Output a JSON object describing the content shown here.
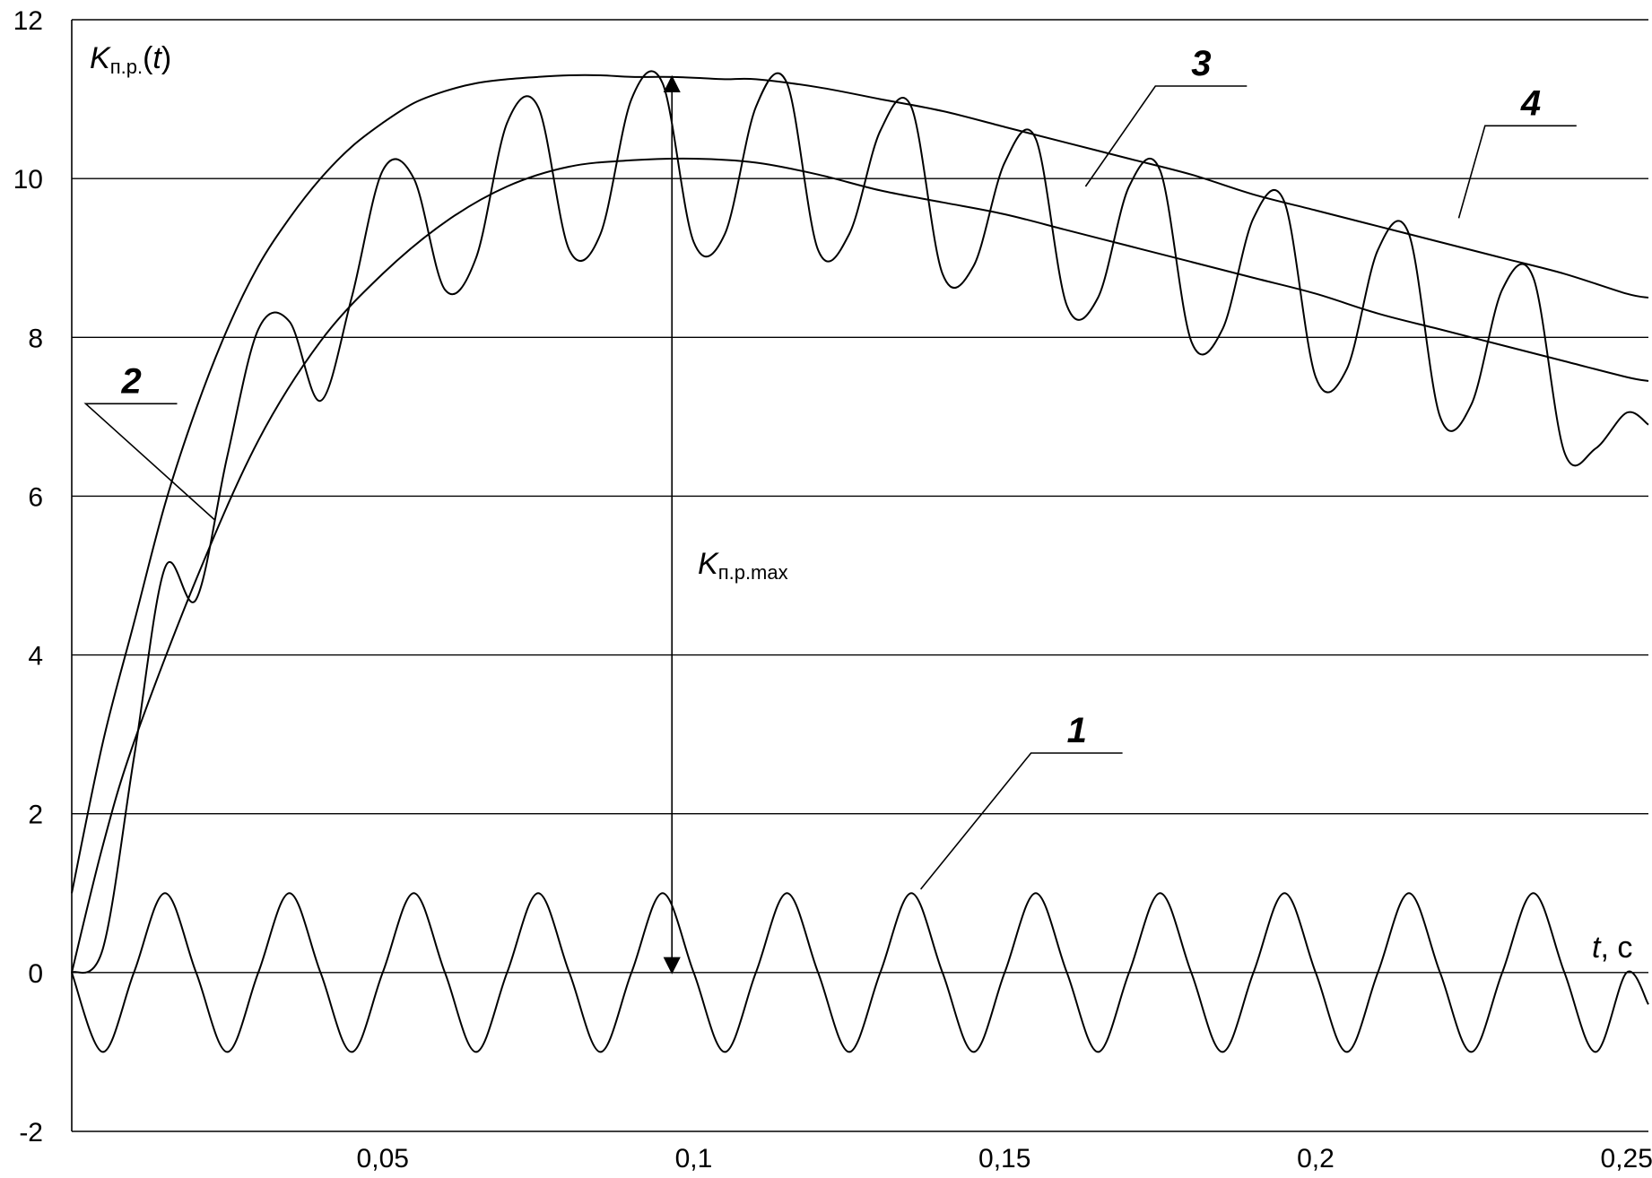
{
  "chart_data": {
    "type": "line",
    "ylabel": {
      "main": "K",
      "sub": "п.р.",
      "suffix": "(",
      "var": "t",
      "close": ")"
    },
    "xlabel": {
      "var": "t",
      "unit": ", с"
    },
    "max_label": {
      "main": "K",
      "sub": "п.р.max"
    },
    "xlim": [
      0,
      0.2535
    ],
    "ylim": [
      -2,
      12
    ],
    "x_ticks": [
      {
        "value": 0.05,
        "label": "0,05"
      },
      {
        "value": 0.1,
        "label": "0,1"
      },
      {
        "value": 0.15,
        "label": "0,15"
      },
      {
        "value": 0.2,
        "label": "0,2"
      },
      {
        "value": 0.25,
        "label": "0,25"
      }
    ],
    "y_ticks": [
      {
        "value": -2,
        "label": "-2"
      },
      {
        "value": 0,
        "label": "0"
      },
      {
        "value": 2,
        "label": "2"
      },
      {
        "value": 4,
        "label": "4"
      },
      {
        "value": 6,
        "label": "6"
      },
      {
        "value": 8,
        "label": "8"
      },
      {
        "value": 10,
        "label": "10"
      },
      {
        "value": 12,
        "label": "12"
      }
    ],
    "grid": true,
    "series": [
      {
        "id": "1",
        "x": [
          0,
          0.005,
          0.01,
          0.015,
          0.02,
          0.025,
          0.03,
          0.035,
          0.04,
          0.045,
          0.05,
          0.055,
          0.06,
          0.065,
          0.07,
          0.075,
          0.08,
          0.085,
          0.09,
          0.095,
          0.1,
          0.105,
          0.11,
          0.115,
          0.12,
          0.125,
          0.13,
          0.135,
          0.14,
          0.145,
          0.15,
          0.155,
          0.16,
          0.165,
          0.17,
          0.175,
          0.18,
          0.185,
          0.19,
          0.195,
          0.2,
          0.205,
          0.21,
          0.215,
          0.22,
          0.225,
          0.23,
          0.235,
          0.24,
          0.245,
          0.25,
          0.2535
        ],
        "y": [
          0,
          -1,
          0,
          1,
          0,
          -1,
          0,
          1,
          0,
          -1,
          0,
          1,
          0,
          -1,
          0,
          1,
          0,
          -1,
          0,
          1,
          0,
          -1,
          0,
          1,
          0,
          -1,
          0,
          1,
          0,
          -1,
          0,
          1,
          0,
          -1,
          0,
          1,
          0,
          -1,
          0,
          1,
          0,
          -1,
          0,
          1,
          0,
          -1,
          0,
          1,
          0,
          -1,
          0,
          -0.4
        ]
      },
      {
        "id": "2",
        "x": [
          0,
          0.005,
          0.01,
          0.02,
          0.03,
          0.04,
          0.05,
          0.06,
          0.07,
          0.08,
          0.09,
          0.1,
          0.11,
          0.12,
          0.13,
          0.14,
          0.15,
          0.16,
          0.17,
          0.18,
          0.19,
          0.2,
          0.21,
          0.22,
          0.23,
          0.24,
          0.25,
          0.2535
        ],
        "y": [
          0,
          1.6,
          2.9,
          4.95,
          6.7,
          7.95,
          8.8,
          9.45,
          9.9,
          10.15,
          10.23,
          10.25,
          10.2,
          10.05,
          9.85,
          9.7,
          9.55,
          9.35,
          9.15,
          8.95,
          8.75,
          8.55,
          8.3,
          8.1,
          7.9,
          7.7,
          7.5,
          7.45
        ]
      },
      {
        "id": "3",
        "x": [
          0,
          0.005,
          0.01,
          0.015,
          0.02,
          0.025,
          0.03,
          0.035,
          0.04,
          0.045,
          0.05,
          0.055,
          0.06,
          0.065,
          0.07,
          0.075,
          0.08,
          0.085,
          0.09,
          0.095,
          0.1,
          0.105,
          0.11,
          0.115,
          0.12,
          0.125,
          0.13,
          0.135,
          0.14,
          0.145,
          0.15,
          0.155,
          0.16,
          0.165,
          0.17,
          0.175,
          0.18,
          0.185,
          0.19,
          0.195,
          0.2,
          0.205,
          0.21,
          0.215,
          0.22,
          0.225,
          0.23,
          0.235,
          0.24,
          0.245,
          0.25,
          0.2535
        ],
        "y": [
          0,
          0.3,
          2.7,
          5.1,
          4.7,
          6.5,
          8.1,
          8.2,
          7.2,
          8.5,
          10.1,
          10.0,
          8.6,
          9.0,
          10.7,
          10.9,
          9.1,
          9.3,
          11.0,
          11.2,
          9.2,
          9.3,
          10.9,
          11.2,
          9.1,
          9.3,
          10.6,
          10.9,
          8.8,
          8.9,
          10.2,
          10.5,
          8.4,
          8.5,
          9.9,
          10.1,
          7.95,
          8.1,
          9.5,
          9.7,
          7.5,
          7.6,
          9.1,
          9.3,
          7.0,
          7.15,
          8.6,
          8.75,
          6.55,
          6.6,
          7.05,
          6.9
        ]
      },
      {
        "id": "4",
        "x": [
          0,
          0.005,
          0.01,
          0.015,
          0.02,
          0.025,
          0.03,
          0.035,
          0.04,
          0.045,
          0.05,
          0.055,
          0.06,
          0.065,
          0.07,
          0.075,
          0.08,
          0.085,
          0.09,
          0.095,
          0.1,
          0.105,
          0.11,
          0.12,
          0.13,
          0.14,
          0.15,
          0.16,
          0.17,
          0.18,
          0.19,
          0.2,
          0.21,
          0.22,
          0.23,
          0.24,
          0.25,
          0.2535
        ],
        "y": [
          1.0,
          2.9,
          4.4,
          5.9,
          7.1,
          8.1,
          8.9,
          9.5,
          10.0,
          10.4,
          10.7,
          10.95,
          11.1,
          11.2,
          11.25,
          11.28,
          11.3,
          11.3,
          11.28,
          11.28,
          11.27,
          11.25,
          11.25,
          11.15,
          11.0,
          10.85,
          10.65,
          10.45,
          10.25,
          10.05,
          9.8,
          9.6,
          9.4,
          9.2,
          9.0,
          8.8,
          8.55,
          8.5
        ]
      }
    ],
    "annotations": [
      {
        "text": "1",
        "leader": [
          0.1365,
          1.05
        ],
        "label_at": [
          0.16,
          2.9
        ]
      },
      {
        "text": "2",
        "leader": [
          0.023,
          5.7
        ],
        "label_at": [
          0.008,
          7.3
        ]
      },
      {
        "text": "3",
        "leader": [
          0.163,
          9.9
        ],
        "label_at": [
          0.18,
          11.3
        ]
      },
      {
        "text": "4",
        "leader": [
          0.223,
          9.5
        ],
        "label_at": [
          0.233,
          10.8
        ]
      }
    ],
    "kmax_marker": {
      "x": 0.0965,
      "y_from": 0,
      "y_to": 11.28
    }
  }
}
